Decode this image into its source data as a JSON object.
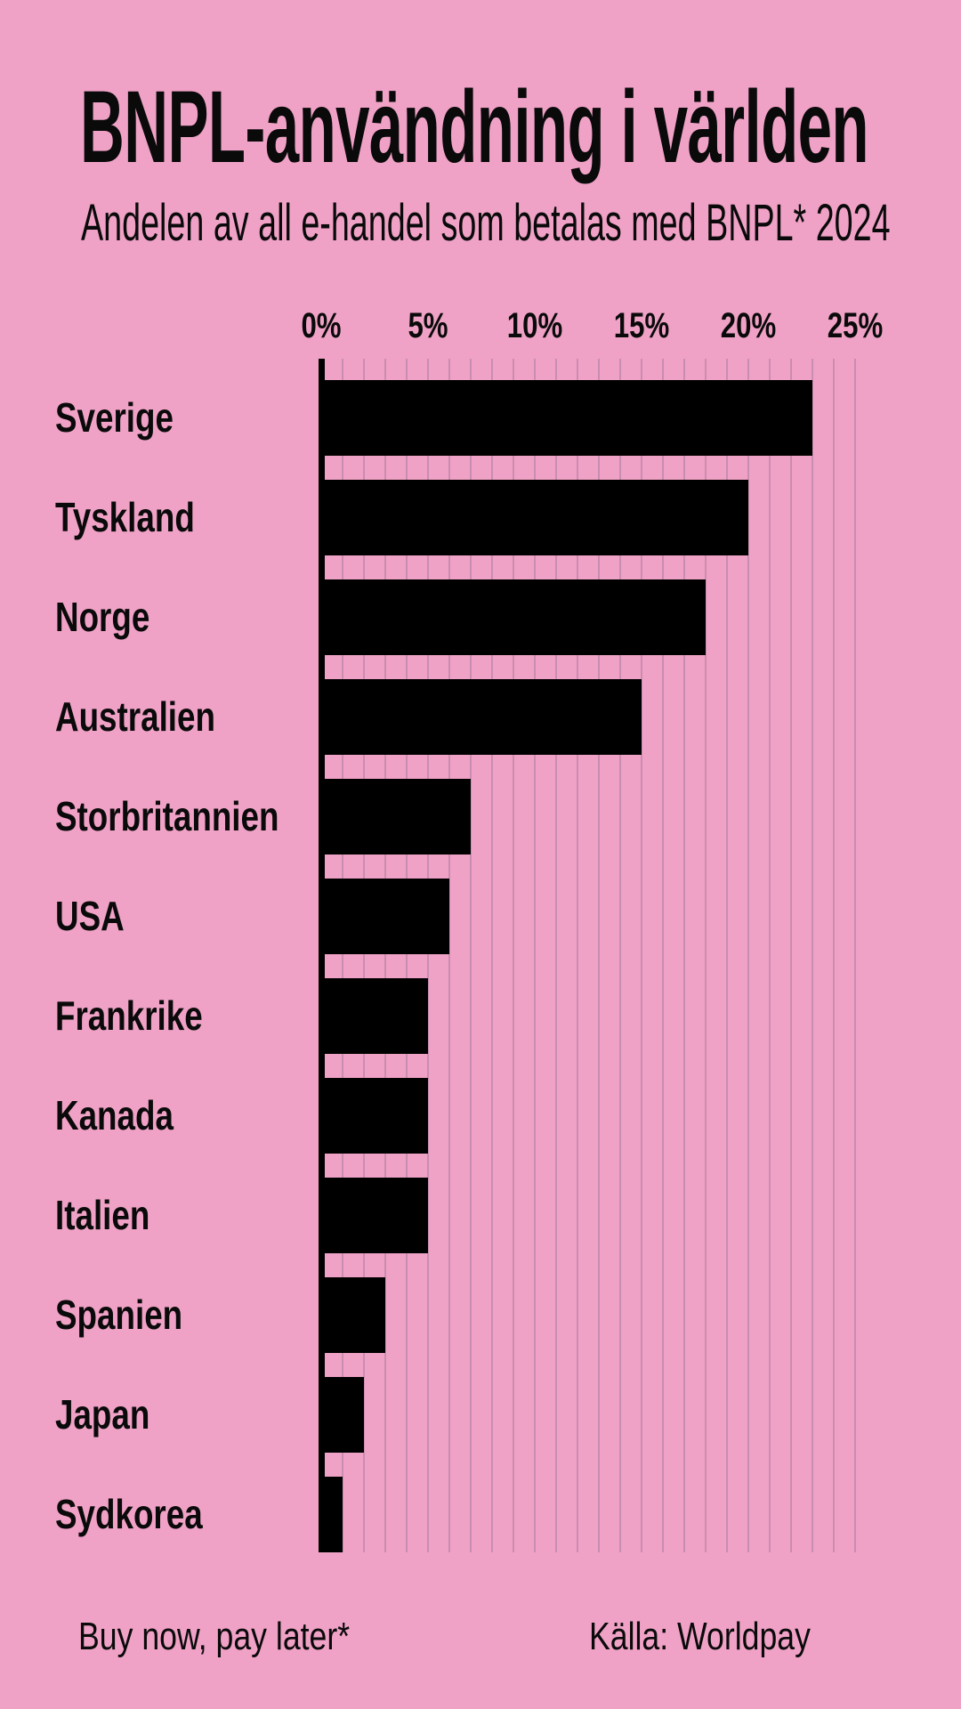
{
  "page": {
    "background_color": "#f0a2c6",
    "text_color": "#0a0a0a"
  },
  "chart_data": {
    "type": "bar",
    "orientation": "horizontal",
    "title": "BNPL-användning i världen",
    "subtitle": "Andelen av all e-handel som betalas med BNPL* 2024",
    "categories": [
      "Sverige",
      "Tyskland",
      "Norge",
      "Australien",
      "Storbritannien",
      "USA",
      "Frankrike",
      "Kanada",
      "Italien",
      "Spanien",
      "Japan",
      "Sydkorea"
    ],
    "values": [
      23,
      20,
      18,
      15,
      7,
      6,
      5,
      5,
      5,
      3,
      2,
      1
    ],
    "unit": "%",
    "xlabel": "",
    "ylabel": "",
    "xlim": [
      0,
      25
    ],
    "x_ticks": [
      "0%",
      "5%",
      "10%",
      "15%",
      "20%",
      "25%"
    ],
    "x_tick_values": [
      0,
      5,
      10,
      15,
      20,
      25
    ],
    "gridlines": "vertical, every 1 percent",
    "legend": "none",
    "bar_color": "#000000",
    "gridline_color": "#c98daf",
    "axis_color": "#000000"
  },
  "footer": {
    "footnote": "Buy now, pay later*",
    "source": "Källa: Worldpay"
  }
}
